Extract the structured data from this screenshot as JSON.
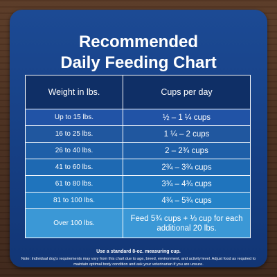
{
  "title": {
    "line1": "Recommended",
    "line2": "Daily Feeding Chart"
  },
  "table": {
    "headers": {
      "weight": "Weight in lbs.",
      "cups": "Cups per day"
    },
    "rows": [
      {
        "weight": "Up to 15 lbs.",
        "cups": "½ – 1 ¼ cups"
      },
      {
        "weight": "16 to 25 lbs.",
        "cups": "1 ¼ –  2 cups"
      },
      {
        "weight": "26 to 40 lbs.",
        "cups": "2 – 2¾ cups"
      },
      {
        "weight": "41 to 60 lbs.",
        "cups": "2¾ – 3¾ cups"
      },
      {
        "weight": "61 to 80 lbs.",
        "cups": "3¾ – 4¾ cups"
      },
      {
        "weight": "81 to 100 lbs.",
        "cups": "4¾ – 5¾ cups"
      },
      {
        "weight": "Over 100 lbs.",
        "cups": "Feed 5¾ cups + ⅓ cup for each additional 20 lbs."
      }
    ]
  },
  "footer": {
    "note1": "Use a standard 8-oz. measuring cup.",
    "note2": "Note: Individual dog's requirements may vary from this chart due to age, breed, environment, and activity level. Adjust food as required to maintain optimal body condition and ask your veterinarian if you are unsure."
  },
  "colors": {
    "card": "#1c4a94",
    "header_row": "#0f2f66",
    "row_gradient": [
      "#2153a6",
      "#20579f",
      "#1e5fa8",
      "#1e69b2",
      "#1f74bd",
      "#2482c8",
      "#3b98d6"
    ]
  }
}
